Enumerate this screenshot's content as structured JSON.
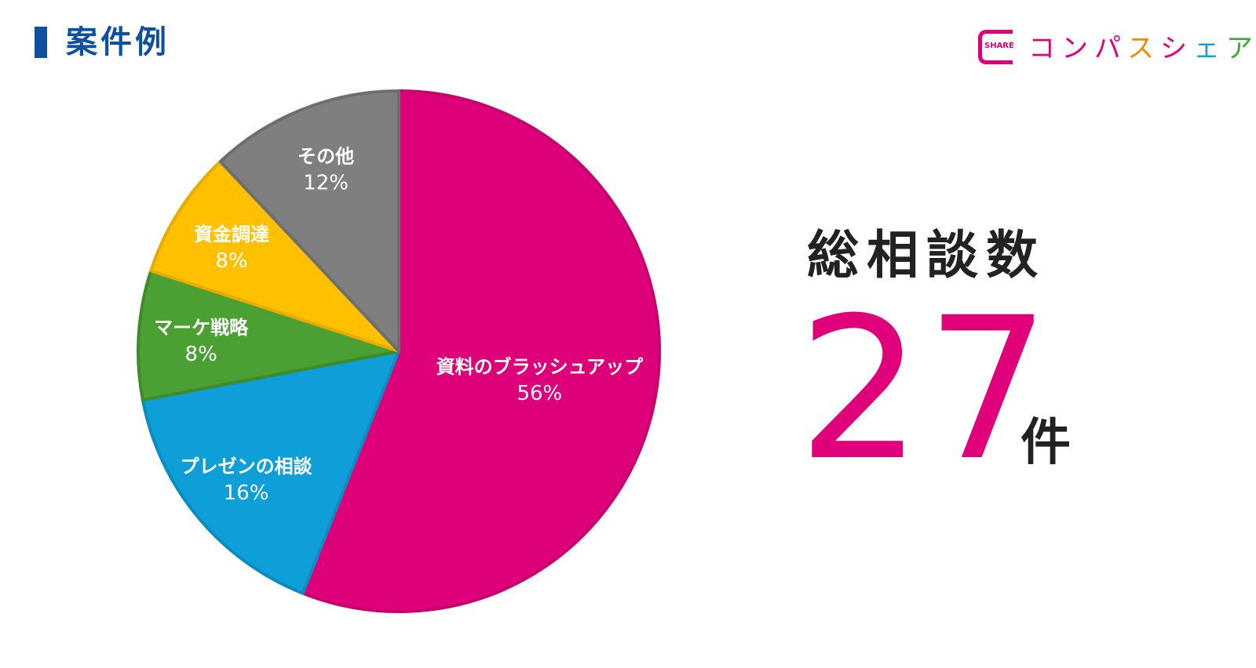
{
  "header": {
    "title": "案件例"
  },
  "brand": {
    "mark_text": "SHARE",
    "name_chars": [
      {
        "char": "コ",
        "color": "#e0007a"
      },
      {
        "char": "ン",
        "color": "#e0007a"
      },
      {
        "char": "パ",
        "color": "#e0007a"
      },
      {
        "char": "ス",
        "color": "#f08a00"
      },
      {
        "char": "シ",
        "color": "#e0007a"
      },
      {
        "char": "ェ",
        "color": "#1a9fd6"
      },
      {
        "char": "ア",
        "color": "#3aa935"
      }
    ]
  },
  "summary": {
    "label": "総相談数",
    "value": "27",
    "unit": "件",
    "value_color": "#e0007a"
  },
  "chart_data": {
    "type": "pie",
    "start": "12 o'clock",
    "direction": "clockwise",
    "slices": [
      {
        "label": "資料のブラッシュアップ",
        "value": 56,
        "display": "56%",
        "color": "#dd0079",
        "edge": "#c8006d"
      },
      {
        "label": "プレゼンの相談",
        "value": 16,
        "display": "16%",
        "color": "#0e9fd8",
        "edge": "#0b8cc0"
      },
      {
        "label": "マーケ戦略",
        "value": 8,
        "display": "8%",
        "color": "#4aa032",
        "edge": "#3f8b2a"
      },
      {
        "label": "資金調達",
        "value": 8,
        "display": "8%",
        "color": "#ffc000",
        "edge": "#e6ac00"
      },
      {
        "label": "その他",
        "value": 12,
        "display": "12%",
        "color": "#7f7f7f",
        "edge": "#6e6e6e"
      }
    ],
    "label_color": "#ffffff",
    "legend": "none"
  }
}
